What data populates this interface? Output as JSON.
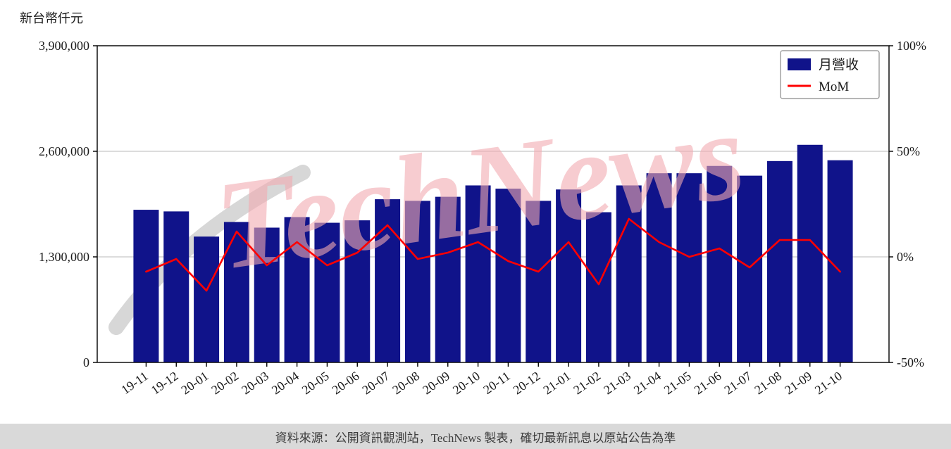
{
  "header": {
    "unit_label": "新台幣仟元"
  },
  "legend": {
    "bar_label": "月營收",
    "line_label": "MoM"
  },
  "watermark": {
    "text": "TechNews"
  },
  "footer": {
    "source_text": "資料來源：公開資訊觀測站，TechNews 製表，確切最新訊息以原站公告為準"
  },
  "colors": {
    "bar": "#10138a",
    "line": "#ff0000",
    "grid": "#c8c8c8",
    "spine": "#000000",
    "watermark_pink": "#f2aab0",
    "watermark_gray": "#9a9a9a",
    "footer_bg": "#d9d9d9"
  },
  "chart_data": {
    "type": "bar+line",
    "title": "",
    "categories": [
      "19-11",
      "19-12",
      "20-01",
      "20-02",
      "20-03",
      "20-04",
      "20-05",
      "20-06",
      "20-07",
      "20-08",
      "20-09",
      "20-10",
      "20-11",
      "20-12",
      "21-01",
      "21-02",
      "21-03",
      "21-04",
      "21-05",
      "21-06",
      "21-07",
      "21-08",
      "21-09",
      "21-10"
    ],
    "series": [
      {
        "name": "月營收",
        "type": "bar",
        "axis": "left",
        "color": "#10138a",
        "values": [
          1880000,
          1860000,
          1550000,
          1730000,
          1660000,
          1790000,
          1720000,
          1750000,
          2010000,
          1990000,
          2040000,
          2180000,
          2140000,
          1990000,
          2130000,
          1850000,
          2180000,
          2330000,
          2330000,
          2420000,
          2300000,
          2480000,
          2680000,
          2490000
        ]
      },
      {
        "name": "MoM",
        "type": "line",
        "axis": "right",
        "color": "#ff0000",
        "values": [
          -7,
          -1,
          -16,
          12,
          -4,
          7,
          -4,
          2,
          15,
          -1,
          2,
          7,
          -2,
          -7,
          7,
          -13,
          18,
          7,
          0,
          4,
          -5,
          8,
          8,
          -7
        ]
      }
    ],
    "left_axis": {
      "unit": "新台幣仟元",
      "range": [
        0,
        3900000
      ],
      "ticks": [
        0,
        1300000,
        2600000,
        3900000
      ],
      "tick_labels": [
        "0",
        "1,300,000",
        "2,600,000",
        "3,900,000"
      ]
    },
    "right_axis": {
      "unit": "%",
      "range": [
        -50,
        100
      ],
      "ticks": [
        -50,
        0,
        50,
        100
      ],
      "tick_labels": [
        "-50%",
        "0%",
        "50%",
        "100%"
      ]
    },
    "grid": true,
    "legend_position": "top-right"
  }
}
